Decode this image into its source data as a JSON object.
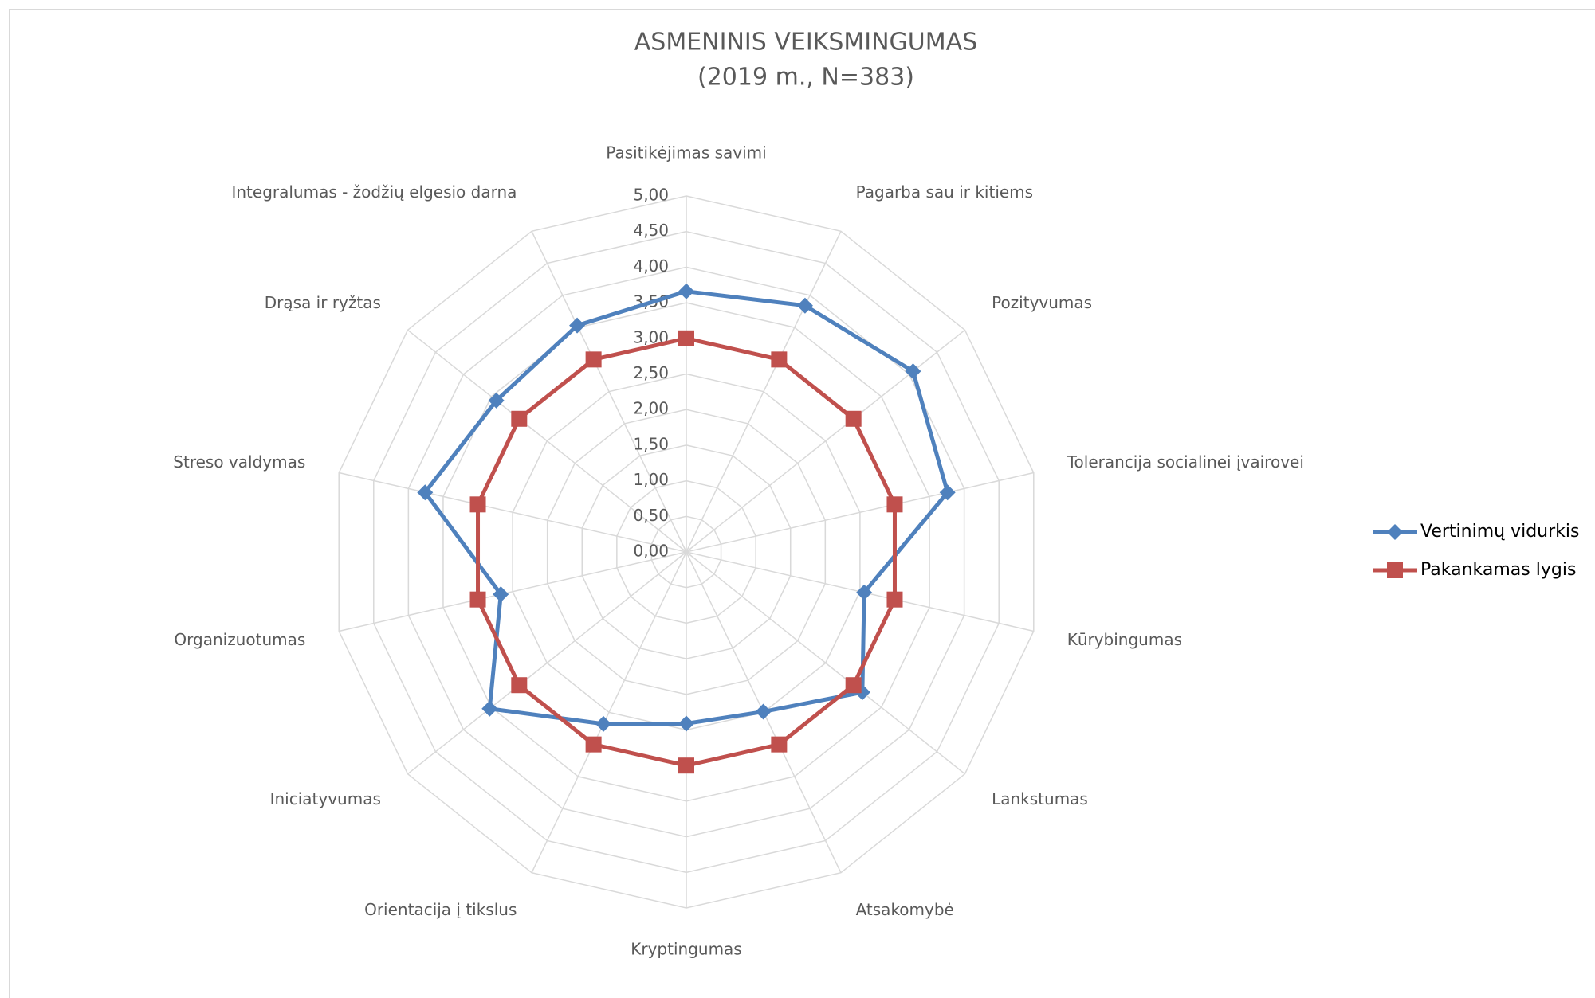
{
  "chart_data": {
    "type": "radar",
    "title": "ASMENINIS VEIKSMINGUMAS",
    "subtitle": "(2019 m., N=383)",
    "categories": [
      "Pasitikėjimas savimi",
      "Pagarba sau ir kitiems",
      "Pozityvumas",
      "Tolerancija socialinei įvairovei",
      "Kūrybingumas",
      "Lankstumas",
      "Atsakomybė",
      "Kryptingumas",
      "Orientacija į tikslus",
      "Iniciatyvumas",
      "Organizuotumas",
      "Streso valdymas",
      "Drąsa ir ryžtas",
      "Integralumas - žodžių elgesio darna"
    ],
    "series": [
      {
        "name": "Vertinimų vidurkis",
        "color": "#4f81bd",
        "marker": "diamond",
        "values": [
          3.66,
          3.84,
          4.07,
          3.76,
          2.56,
          3.16,
          2.49,
          2.41,
          2.68,
          3.53,
          2.67,
          3.76,
          3.41,
          3.53
        ]
      },
      {
        "name": "Pakankamas lygis",
        "color": "#c0504d",
        "marker": "square",
        "values": [
          3,
          3,
          3,
          3,
          3,
          3,
          3,
          3,
          3,
          3,
          3,
          3,
          3,
          3
        ]
      }
    ],
    "ylim": [
      0,
      5
    ],
    "yticks": [
      {
        "value": 0,
        "label": "0,00"
      },
      {
        "value": 0.5,
        "label": "0,50"
      },
      {
        "value": 1,
        "label": "1,00"
      },
      {
        "value": 1.5,
        "label": "1,50"
      },
      {
        "value": 2,
        "label": "2,00"
      },
      {
        "value": 2.5,
        "label": "2,50"
      },
      {
        "value": 3,
        "label": "3,00"
      },
      {
        "value": 3.5,
        "label": "3,50"
      },
      {
        "value": 4,
        "label": "4,00"
      },
      {
        "value": 4.5,
        "label": "4,50"
      },
      {
        "value": 5,
        "label": "5,00"
      }
    ],
    "grid": true,
    "legend": "right"
  }
}
